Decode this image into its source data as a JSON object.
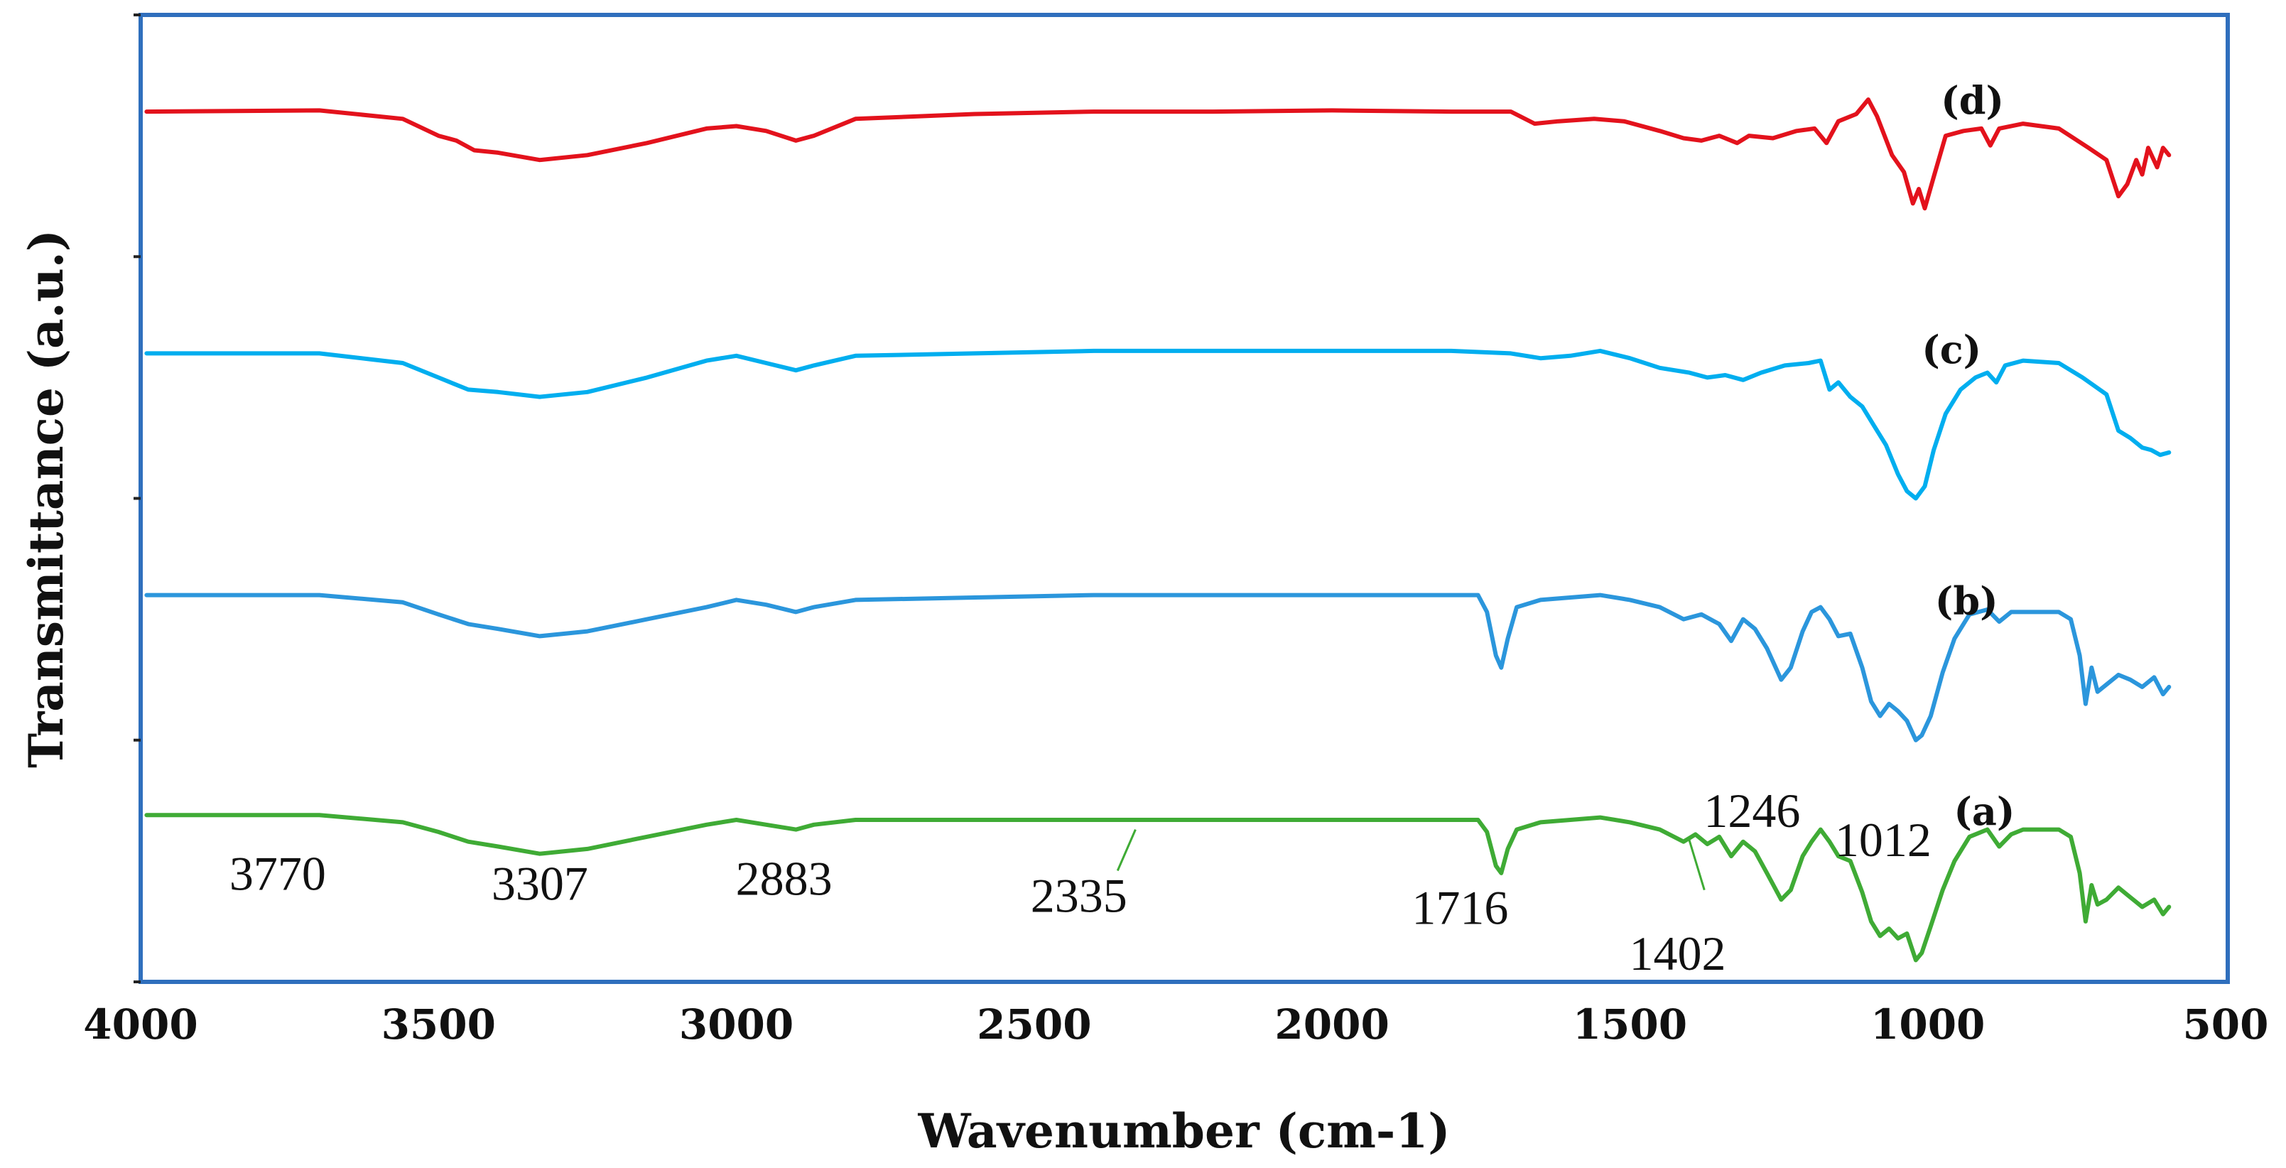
{
  "chart_data": {
    "type": "line",
    "title": "",
    "xlabel": "Wavenumber (cm-1)",
    "ylabel": "Transmittance (a.u.)",
    "xlim": [
      4000,
      500
    ],
    "ylim": [
      0,
      4
    ],
    "x_ticks": [
      "4000",
      "3500",
      "3000",
      "2500",
      "2000",
      "1500",
      "1000",
      "500"
    ],
    "grid": false,
    "colors": {
      "frame": "#2f6fbd",
      "axis": "#222222"
    },
    "series": [
      {
        "name": "(d)",
        "color": "#e3121c",
        "points": [
          [
            3990,
            3.6
          ],
          [
            3700,
            3.605
          ],
          [
            3560,
            3.57
          ],
          [
            3500,
            3.5
          ],
          [
            3470,
            3.48
          ],
          [
            3440,
            3.44
          ],
          [
            3400,
            3.43
          ],
          [
            3330,
            3.4
          ],
          [
            3250,
            3.42
          ],
          [
            3150,
            3.47
          ],
          [
            3050,
            3.53
          ],
          [
            3000,
            3.54
          ],
          [
            2950,
            3.52
          ],
          [
            2900,
            3.48
          ],
          [
            2870,
            3.5
          ],
          [
            2800,
            3.57
          ],
          [
            2600,
            3.59
          ],
          [
            2400,
            3.6
          ],
          [
            2200,
            3.6
          ],
          [
            2000,
            3.605
          ],
          [
            1800,
            3.6
          ],
          [
            1700,
            3.6
          ],
          [
            1660,
            3.55
          ],
          [
            1620,
            3.56
          ],
          [
            1560,
            3.57
          ],
          [
            1510,
            3.56
          ],
          [
            1450,
            3.52
          ],
          [
            1410,
            3.49
          ],
          [
            1380,
            3.48
          ],
          [
            1350,
            3.5
          ],
          [
            1320,
            3.47
          ],
          [
            1300,
            3.5
          ],
          [
            1260,
            3.49
          ],
          [
            1220,
            3.52
          ],
          [
            1190,
            3.53
          ],
          [
            1170,
            3.47
          ],
          [
            1150,
            3.56
          ],
          [
            1120,
            3.59
          ],
          [
            1100,
            3.65
          ],
          [
            1085,
            3.58
          ],
          [
            1060,
            3.42
          ],
          [
            1040,
            3.35
          ],
          [
            1025,
            3.22
          ],
          [
            1015,
            3.28
          ],
          [
            1005,
            3.2
          ],
          [
            990,
            3.33
          ],
          [
            970,
            3.5
          ],
          [
            940,
            3.52
          ],
          [
            910,
            3.53
          ],
          [
            895,
            3.46
          ],
          [
            880,
            3.53
          ],
          [
            840,
            3.55
          ],
          [
            780,
            3.53
          ],
          [
            730,
            3.45
          ],
          [
            700,
            3.4
          ],
          [
            680,
            3.25
          ],
          [
            665,
            3.3
          ],
          [
            650,
            3.4
          ],
          [
            640,
            3.34
          ],
          [
            630,
            3.45
          ],
          [
            615,
            3.37
          ],
          [
            605,
            3.45
          ],
          [
            595,
            3.42
          ]
        ]
      },
      {
        "name": "(c)",
        "color": "#00aeef",
        "points": [
          [
            3990,
            2.6
          ],
          [
            3700,
            2.6
          ],
          [
            3560,
            2.56
          ],
          [
            3500,
            2.5
          ],
          [
            3450,
            2.45
          ],
          [
            3400,
            2.44
          ],
          [
            3330,
            2.42
          ],
          [
            3250,
            2.44
          ],
          [
            3150,
            2.5
          ],
          [
            3050,
            2.57
          ],
          [
            3000,
            2.59
          ],
          [
            2950,
            2.56
          ],
          [
            2900,
            2.53
          ],
          [
            2870,
            2.55
          ],
          [
            2800,
            2.59
          ],
          [
            2600,
            2.6
          ],
          [
            2400,
            2.61
          ],
          [
            2200,
            2.61
          ],
          [
            2000,
            2.61
          ],
          [
            1800,
            2.61
          ],
          [
            1700,
            2.6
          ],
          [
            1650,
            2.58
          ],
          [
            1600,
            2.59
          ],
          [
            1550,
            2.61
          ],
          [
            1500,
            2.58
          ],
          [
            1450,
            2.54
          ],
          [
            1400,
            2.52
          ],
          [
            1370,
            2.5
          ],
          [
            1340,
            2.51
          ],
          [
            1310,
            2.49
          ],
          [
            1280,
            2.52
          ],
          [
            1240,
            2.55
          ],
          [
            1200,
            2.56
          ],
          [
            1180,
            2.57
          ],
          [
            1165,
            2.45
          ],
          [
            1150,
            2.48
          ],
          [
            1130,
            2.42
          ],
          [
            1110,
            2.38
          ],
          [
            1090,
            2.3
          ],
          [
            1070,
            2.22
          ],
          [
            1050,
            2.1
          ],
          [
            1035,
            2.03
          ],
          [
            1020,
            2.0
          ],
          [
            1005,
            2.05
          ],
          [
            990,
            2.2
          ],
          [
            970,
            2.35
          ],
          [
            945,
            2.45
          ],
          [
            920,
            2.5
          ],
          [
            900,
            2.52
          ],
          [
            885,
            2.48
          ],
          [
            870,
            2.55
          ],
          [
            840,
            2.57
          ],
          [
            780,
            2.56
          ],
          [
            740,
            2.5
          ],
          [
            700,
            2.43
          ],
          [
            680,
            2.28
          ],
          [
            660,
            2.25
          ],
          [
            640,
            2.21
          ],
          [
            625,
            2.2
          ],
          [
            610,
            2.18
          ],
          [
            595,
            2.19
          ]
        ]
      },
      {
        "name": "(b)",
        "color": "#2b96dc",
        "points": [
          [
            3990,
            1.6
          ],
          [
            3700,
            1.6
          ],
          [
            3560,
            1.57
          ],
          [
            3500,
            1.52
          ],
          [
            3450,
            1.48
          ],
          [
            3400,
            1.46
          ],
          [
            3330,
            1.43
          ],
          [
            3250,
            1.45
          ],
          [
            3150,
            1.5
          ],
          [
            3050,
            1.55
          ],
          [
            3000,
            1.58
          ],
          [
            2950,
            1.56
          ],
          [
            2900,
            1.53
          ],
          [
            2870,
            1.55
          ],
          [
            2800,
            1.58
          ],
          [
            2600,
            1.59
          ],
          [
            2400,
            1.6
          ],
          [
            2200,
            1.6
          ],
          [
            2000,
            1.6
          ],
          [
            1800,
            1.6
          ],
          [
            1755,
            1.6
          ],
          [
            1740,
            1.53
          ],
          [
            1725,
            1.35
          ],
          [
            1716,
            1.3
          ],
          [
            1705,
            1.42
          ],
          [
            1690,
            1.55
          ],
          [
            1650,
            1.58
          ],
          [
            1600,
            1.59
          ],
          [
            1550,
            1.6
          ],
          [
            1500,
            1.58
          ],
          [
            1450,
            1.55
          ],
          [
            1410,
            1.5
          ],
          [
            1380,
            1.52
          ],
          [
            1350,
            1.48
          ],
          [
            1330,
            1.41
          ],
          [
            1310,
            1.5
          ],
          [
            1290,
            1.46
          ],
          [
            1270,
            1.38
          ],
          [
            1246,
            1.25
          ],
          [
            1230,
            1.3
          ],
          [
            1210,
            1.45
          ],
          [
            1195,
            1.53
          ],
          [
            1180,
            1.55
          ],
          [
            1165,
            1.5
          ],
          [
            1150,
            1.43
          ],
          [
            1130,
            1.44
          ],
          [
            1110,
            1.3
          ],
          [
            1095,
            1.16
          ],
          [
            1080,
            1.1
          ],
          [
            1065,
            1.15
          ],
          [
            1050,
            1.12
          ],
          [
            1035,
            1.08
          ],
          [
            1020,
            1.0
          ],
          [
            1010,
            1.02
          ],
          [
            995,
            1.1
          ],
          [
            975,
            1.28
          ],
          [
            955,
            1.42
          ],
          [
            930,
            1.52
          ],
          [
            900,
            1.54
          ],
          [
            880,
            1.49
          ],
          [
            860,
            1.53
          ],
          [
            840,
            1.53
          ],
          [
            780,
            1.53
          ],
          [
            760,
            1.5
          ],
          [
            745,
            1.35
          ],
          [
            735,
            1.15
          ],
          [
            725,
            1.3
          ],
          [
            715,
            1.2
          ],
          [
            700,
            1.23
          ],
          [
            680,
            1.27
          ],
          [
            660,
            1.25
          ],
          [
            640,
            1.22
          ],
          [
            620,
            1.26
          ],
          [
            605,
            1.19
          ],
          [
            595,
            1.22
          ]
        ]
      },
      {
        "name": "(a)",
        "color": "#3fab35",
        "points": [
          [
            3990,
            0.69
          ],
          [
            3700,
            0.69
          ],
          [
            3560,
            0.66
          ],
          [
            3500,
            0.62
          ],
          [
            3450,
            0.58
          ],
          [
            3400,
            0.56
          ],
          [
            3330,
            0.53
          ],
          [
            3250,
            0.55
          ],
          [
            3150,
            0.6
          ],
          [
            3050,
            0.65
          ],
          [
            3000,
            0.67
          ],
          [
            2950,
            0.65
          ],
          [
            2900,
            0.63
          ],
          [
            2870,
            0.65
          ],
          [
            2800,
            0.67
          ],
          [
            2600,
            0.67
          ],
          [
            2400,
            0.67
          ],
          [
            2200,
            0.67
          ],
          [
            2000,
            0.67
          ],
          [
            1800,
            0.67
          ],
          [
            1755,
            0.67
          ],
          [
            1740,
            0.62
          ],
          [
            1725,
            0.48
          ],
          [
            1716,
            0.45
          ],
          [
            1705,
            0.55
          ],
          [
            1690,
            0.63
          ],
          [
            1650,
            0.66
          ],
          [
            1600,
            0.67
          ],
          [
            1550,
            0.68
          ],
          [
            1500,
            0.66
          ],
          [
            1450,
            0.63
          ],
          [
            1410,
            0.58
          ],
          [
            1390,
            0.61
          ],
          [
            1370,
            0.57
          ],
          [
            1350,
            0.6
          ],
          [
            1330,
            0.52
          ],
          [
            1310,
            0.58
          ],
          [
            1290,
            0.54
          ],
          [
            1270,
            0.45
          ],
          [
            1246,
            0.34
          ],
          [
            1230,
            0.38
          ],
          [
            1210,
            0.52
          ],
          [
            1195,
            0.58
          ],
          [
            1180,
            0.63
          ],
          [
            1165,
            0.58
          ],
          [
            1150,
            0.52
          ],
          [
            1130,
            0.5
          ],
          [
            1110,
            0.37
          ],
          [
            1095,
            0.25
          ],
          [
            1080,
            0.19
          ],
          [
            1065,
            0.22
          ],
          [
            1050,
            0.18
          ],
          [
            1035,
            0.2
          ],
          [
            1020,
            0.09
          ],
          [
            1010,
            0.12
          ],
          [
            995,
            0.23
          ],
          [
            975,
            0.38
          ],
          [
            955,
            0.5
          ],
          [
            930,
            0.6
          ],
          [
            900,
            0.63
          ],
          [
            880,
            0.56
          ],
          [
            860,
            0.61
          ],
          [
            840,
            0.63
          ],
          [
            780,
            0.63
          ],
          [
            760,
            0.6
          ],
          [
            745,
            0.45
          ],
          [
            735,
            0.25
          ],
          [
            725,
            0.4
          ],
          [
            715,
            0.32
          ],
          [
            700,
            0.34
          ],
          [
            680,
            0.39
          ],
          [
            660,
            0.35
          ],
          [
            640,
            0.31
          ],
          [
            620,
            0.34
          ],
          [
            605,
            0.28
          ],
          [
            595,
            0.31
          ]
        ]
      }
    ],
    "series_labels": [
      {
        "text": "(d)",
        "x": 925,
        "y": 3.59
      },
      {
        "text": "(c)",
        "x": 960,
        "y": 2.56
      },
      {
        "text": "(b)",
        "x": 935,
        "y": 1.52
      },
      {
        "text": "(a)",
        "x": 905,
        "y": 0.65
      }
    ],
    "annotations": [
      {
        "text": "3770",
        "x": 3770,
        "y": 0.38
      },
      {
        "text": "3307",
        "x": 3330,
        "y": 0.34
      },
      {
        "text": "2883",
        "x": 2920,
        "y": 0.36
      },
      {
        "text": "2335",
        "x": 2425,
        "y": 0.29
      },
      {
        "text": "1716",
        "x": 1785,
        "y": 0.24
      },
      {
        "text": "1402",
        "x": 1420,
        "y": 0.05
      },
      {
        "text": "1246",
        "x": 1295,
        "y": 0.64
      },
      {
        "text": "1012",
        "x": 1075,
        "y": 0.52
      }
    ],
    "leader_lines": [
      {
        "from": [
          2330,
          0.63
        ],
        "to": [
          2360,
          0.46
        ]
      },
      {
        "from": [
          1402,
          0.6
        ],
        "to": [
          1375,
          0.38
        ]
      }
    ]
  }
}
